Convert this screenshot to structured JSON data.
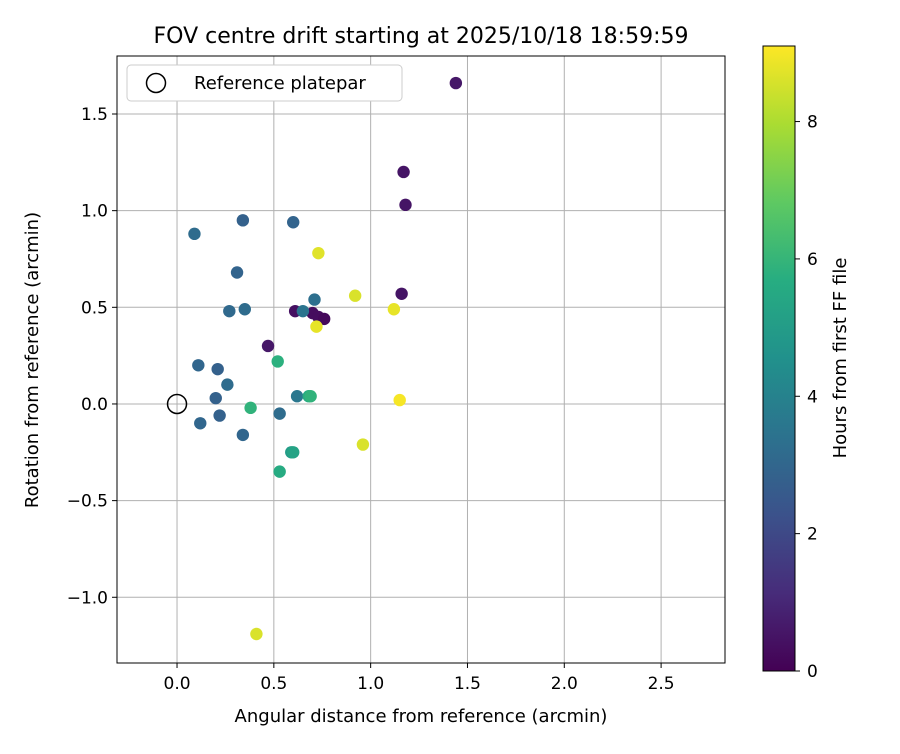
{
  "chart_data": {
    "type": "scatter",
    "title": "FOV centre drift starting at 2025/10/18 18:59:59",
    "xlabel": "Angular distance from reference (arcmin)",
    "ylabel": "Rotation from reference (arcmin)",
    "xlim": [
      -0.31,
      2.83
    ],
    "ylim": [
      -1.34,
      1.8
    ],
    "xticks": [
      0.0,
      0.5,
      1.0,
      1.5,
      2.0,
      2.5
    ],
    "xtick_labels": [
      "0.0",
      "0.5",
      "1.0",
      "1.5",
      "2.0",
      "2.5"
    ],
    "yticks": [
      -1.0,
      -0.5,
      0.0,
      0.5,
      1.0,
      1.5
    ],
    "ytick_labels": [
      "−1.0",
      "−0.5",
      "0.0",
      "0.5",
      "1.0",
      "1.5"
    ],
    "grid": true,
    "legend": {
      "position": "top-left",
      "label": "Reference platepar"
    },
    "reference_point": {
      "x": 0.0,
      "y": 0.0
    },
    "colorbar": {
      "label": "Hours from first FF file",
      "colormap": "viridis",
      "range": [
        0,
        9.1
      ],
      "ticks": [
        0,
        2,
        4,
        6,
        8
      ],
      "tick_labels": [
        "0",
        "2",
        "4",
        "6",
        "8"
      ]
    },
    "points": [
      {
        "x": 1.44,
        "y": 1.66,
        "hours": 0.6
      },
      {
        "x": 1.17,
        "y": 1.2,
        "hours": 0.5
      },
      {
        "x": 1.18,
        "y": 1.03,
        "hours": 0.5
      },
      {
        "x": 1.16,
        "y": 0.57,
        "hours": 0.5
      },
      {
        "x": 0.61,
        "y": 0.48,
        "hours": 0.4
      },
      {
        "x": 0.7,
        "y": 0.47,
        "hours": 0.3
      },
      {
        "x": 0.73,
        "y": 0.45,
        "hours": 0.3
      },
      {
        "x": 0.76,
        "y": 0.44,
        "hours": 0.2
      },
      {
        "x": 0.47,
        "y": 0.3,
        "hours": 0.6
      },
      {
        "x": 0.09,
        "y": 0.88,
        "hours": 3.2
      },
      {
        "x": 0.34,
        "y": 0.95,
        "hours": 2.8
      },
      {
        "x": 0.6,
        "y": 0.94,
        "hours": 2.9
      },
      {
        "x": 0.31,
        "y": 0.68,
        "hours": 2.9
      },
      {
        "x": 0.27,
        "y": 0.48,
        "hours": 3.1
      },
      {
        "x": 0.35,
        "y": 0.49,
        "hours": 3.2
      },
      {
        "x": 0.71,
        "y": 0.54,
        "hours": 3.3
      },
      {
        "x": 0.65,
        "y": 0.48,
        "hours": 3.5
      },
      {
        "x": 0.11,
        "y": 0.2,
        "hours": 3.0
      },
      {
        "x": 0.21,
        "y": 0.18,
        "hours": 2.8
      },
      {
        "x": 0.26,
        "y": 0.1,
        "hours": 3.2
      },
      {
        "x": 0.2,
        "y": 0.03,
        "hours": 2.8
      },
      {
        "x": 0.22,
        "y": -0.06,
        "hours": 2.8
      },
      {
        "x": 0.12,
        "y": -0.1,
        "hours": 3.0
      },
      {
        "x": 0.34,
        "y": -0.16,
        "hours": 3.0
      },
      {
        "x": 0.53,
        "y": -0.05,
        "hours": 3.2
      },
      {
        "x": 0.62,
        "y": 0.04,
        "hours": 3.6
      },
      {
        "x": 0.52,
        "y": 0.22,
        "hours": 5.8
      },
      {
        "x": 0.38,
        "y": -0.02,
        "hours": 5.9
      },
      {
        "x": 0.68,
        "y": 0.04,
        "hours": 5.6
      },
      {
        "x": 0.69,
        "y": 0.04,
        "hours": 5.9
      },
      {
        "x": 0.59,
        "y": -0.25,
        "hours": 5.0
      },
      {
        "x": 0.6,
        "y": -0.25,
        "hours": 5.3
      },
      {
        "x": 0.53,
        "y": -0.35,
        "hours": 5.6
      },
      {
        "x": 0.73,
        "y": 0.78,
        "hours": 8.7
      },
      {
        "x": 0.92,
        "y": 0.56,
        "hours": 8.6
      },
      {
        "x": 0.72,
        "y": 0.4,
        "hours": 8.8
      },
      {
        "x": 1.12,
        "y": 0.49,
        "hours": 8.8
      },
      {
        "x": 1.15,
        "y": 0.02,
        "hours": 9.0
      },
      {
        "x": 0.96,
        "y": -0.21,
        "hours": 8.6
      },
      {
        "x": 0.41,
        "y": -1.19,
        "hours": 8.6
      }
    ]
  }
}
